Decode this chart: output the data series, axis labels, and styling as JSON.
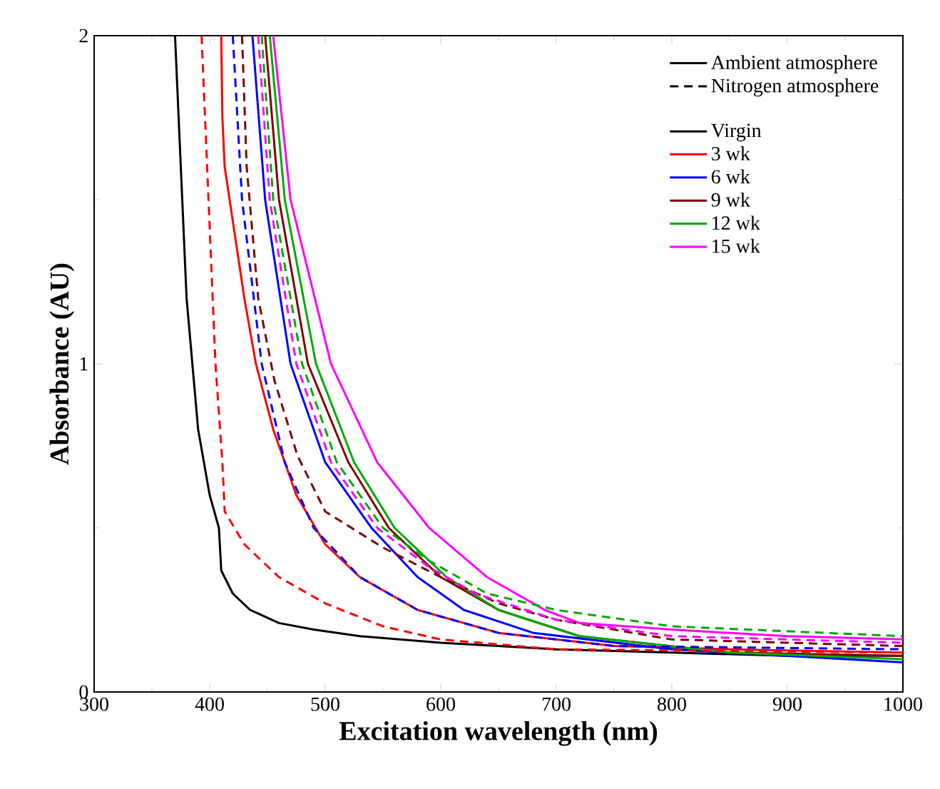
{
  "chart_data": {
    "type": "line",
    "xlabel": "Excitation wavelength (nm)",
    "ylabel": "Absorbance (AU)",
    "xlim": [
      300,
      1000
    ],
    "ylim": [
      0,
      2
    ],
    "xticks": [
      300,
      400,
      500,
      600,
      700,
      800,
      900,
      1000
    ],
    "yticks": [
      0,
      1,
      2
    ],
    "legend": "top right",
    "grid": false,
    "marker": "none",
    "series": [
      {
        "name": "Ambient atmosphere",
        "color": "#000000",
        "line_style": "solid"
      },
      {
        "name": "Nitrogen atmosphere",
        "color": "#000000",
        "line_style": "dashed"
      },
      {
        "name": "Virgin",
        "color": "#000000",
        "line_style": "solid",
        "x": [
          370,
          380,
          390,
          400,
          408,
          410,
          420,
          435,
          460,
          490,
          530,
          600,
          700,
          800,
          900,
          1000
        ],
        "values": [
          2,
          1.2,
          0.8,
          0.6,
          0.5,
          0.37,
          0.3,
          0.25,
          0.21,
          0.19,
          0.17,
          0.15,
          0.13,
          0.12,
          0.11,
          0.11
        ]
      },
      {
        "name": "3 wk",
        "color": "#ff0000",
        "line_style": "solid",
        "x": [
          410,
          411,
          413,
          430,
          440,
          455,
          475,
          500,
          530,
          580,
          650,
          750,
          850,
          1000
        ],
        "values": [
          2,
          1.75,
          1.6,
          1.2,
          1.0,
          0.8,
          0.6,
          0.45,
          0.35,
          0.25,
          0.18,
          0.14,
          0.13,
          0.12
        ]
      },
      {
        "name": "6 wk",
        "color": "#0000ff",
        "line_style": "solid",
        "x": [
          437,
          448,
          470,
          500,
          540,
          580,
          620,
          680,
          800,
          1000
        ],
        "values": [
          2,
          1.5,
          1.0,
          0.7,
          0.5,
          0.35,
          0.25,
          0.18,
          0.13,
          0.09
        ]
      },
      {
        "name": "9 wk",
        "color": "#800000",
        "line_style": "solid",
        "x": [
          448,
          460,
          485,
          520,
          555,
          600,
          650,
          720,
          850,
          1000
        ],
        "values": [
          2,
          1.5,
          1.0,
          0.7,
          0.5,
          0.35,
          0.25,
          0.17,
          0.12,
          0.11
        ]
      },
      {
        "name": "12 wk",
        "color": "#00aa00",
        "line_style": "solid",
        "x": [
          452,
          465,
          492,
          525,
          560,
          605,
          650,
          720,
          850,
          1000
        ],
        "values": [
          2,
          1.5,
          1.0,
          0.7,
          0.5,
          0.35,
          0.25,
          0.17,
          0.12,
          0.1
        ]
      },
      {
        "name": "15 wk",
        "color": "#ff00ff",
        "line_style": "solid",
        "x": [
          455,
          470,
          505,
          545,
          590,
          640,
          690,
          720,
          800,
          900,
          1000
        ],
        "values": [
          2,
          1.5,
          1.0,
          0.7,
          0.5,
          0.35,
          0.25,
          0.21,
          0.19,
          0.17,
          0.16
        ]
      },
      {
        "color": "#ff0000",
        "line_style": "dashed",
        "x": [
          393,
          405,
          411,
          413,
          430,
          460,
          500,
          550,
          600,
          700,
          1000
        ],
        "values": [
          2,
          1.0,
          0.7,
          0.55,
          0.45,
          0.35,
          0.27,
          0.2,
          0.16,
          0.13,
          0.12
        ]
      },
      {
        "color": "#0000ff",
        "line_style": "dashed",
        "x": [
          420,
          428,
          445,
          465,
          490,
          530,
          580,
          650,
          750,
          1000
        ],
        "values": [
          2,
          1.5,
          1.0,
          0.7,
          0.5,
          0.35,
          0.25,
          0.18,
          0.14,
          0.13
        ]
      },
      {
        "color": "#800000",
        "line_style": "dashed",
        "x": [
          428,
          432,
          442,
          456,
          476,
          500,
          550,
          600,
          650,
          700,
          800,
          1000
        ],
        "values": [
          2,
          1.6,
          1.2,
          0.95,
          0.72,
          0.55,
          0.44,
          0.35,
          0.27,
          0.22,
          0.16,
          0.14
        ]
      },
      {
        "color": "#00aa00",
        "line_style": "dashed",
        "x": [
          445,
          455,
          480,
          510,
          550,
          590,
          640,
          700,
          800,
          1000
        ],
        "values": [
          2,
          1.5,
          1.0,
          0.7,
          0.5,
          0.4,
          0.3,
          0.25,
          0.2,
          0.17
        ]
      },
      {
        "color": "#ff00ff",
        "line_style": "dashed",
        "x": [
          442,
          452,
          475,
          505,
          545,
          590,
          630,
          700,
          800,
          1000
        ],
        "values": [
          2,
          1.5,
          1.0,
          0.7,
          0.5,
          0.38,
          0.3,
          0.22,
          0.17,
          0.15
        ]
      }
    ]
  }
}
